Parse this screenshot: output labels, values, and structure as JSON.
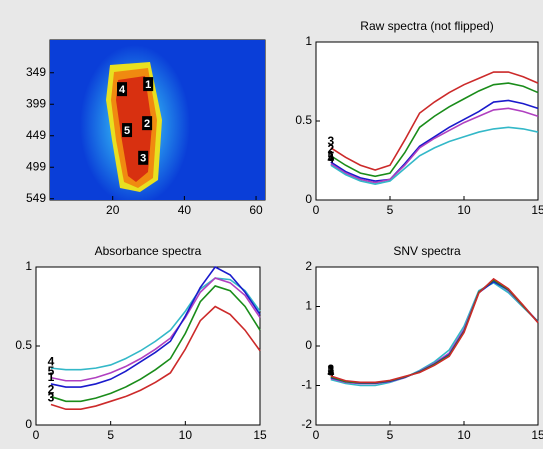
{
  "chart_data": [
    {
      "type": "image",
      "xlim": [
        2.5,
        62.5
      ],
      "xticks": [
        20,
        40,
        60
      ],
      "ylim": [
        297,
        551
      ],
      "yticks": [
        349,
        399,
        449,
        499,
        549
      ],
      "y_reversed": true,
      "markers": [
        {
          "label": "1",
          "x": 29.9,
          "y": 367
        },
        {
          "label": "2",
          "x": 29.6,
          "y": 429
        },
        {
          "label": "3",
          "x": 28.5,
          "y": 484
        },
        {
          "label": "4",
          "x": 22.6,
          "y": 375
        },
        {
          "label": "5",
          "x": 24,
          "y": 440
        }
      ]
    },
    {
      "type": "line",
      "title": "Raw spectra (not flipped)",
      "x": [
        1,
        2,
        3,
        4,
        5,
        6,
        7,
        8,
        9,
        10,
        11,
        12,
        13,
        14,
        15
      ],
      "xlim": [
        0,
        15
      ],
      "xticks": [
        0,
        5,
        10,
        15
      ],
      "ylim": [
        0,
        1
      ],
      "yticks": [
        0,
        0.5,
        1
      ],
      "series": [
        {
          "name": "3",
          "color": "#cc2a2a",
          "values": [
            0.33,
            0.27,
            0.22,
            0.19,
            0.22,
            0.38,
            0.55,
            0.62,
            0.68,
            0.73,
            0.77,
            0.81,
            0.81,
            0.78,
            0.74
          ]
        },
        {
          "name": "2",
          "color": "#1a8c1a",
          "values": [
            0.28,
            0.22,
            0.17,
            0.15,
            0.17,
            0.3,
            0.46,
            0.53,
            0.59,
            0.64,
            0.69,
            0.73,
            0.74,
            0.72,
            0.68
          ]
        },
        {
          "name": "1",
          "color": "#1a1acc",
          "values": [
            0.24,
            0.18,
            0.14,
            0.12,
            0.13,
            0.23,
            0.34,
            0.4,
            0.46,
            0.51,
            0.56,
            0.62,
            0.63,
            0.61,
            0.58
          ]
        },
        {
          "name": "5",
          "color": "#b040c0",
          "values": [
            0.23,
            0.17,
            0.13,
            0.11,
            0.13,
            0.22,
            0.33,
            0.39,
            0.44,
            0.49,
            0.53,
            0.57,
            0.58,
            0.56,
            0.53
          ]
        },
        {
          "name": "4",
          "color": "#33b8c8",
          "values": [
            0.22,
            0.16,
            0.12,
            0.1,
            0.12,
            0.2,
            0.28,
            0.33,
            0.37,
            0.4,
            0.43,
            0.45,
            0.46,
            0.45,
            0.43
          ]
        }
      ]
    },
    {
      "type": "line",
      "title": "Absorbance spectra",
      "x": [
        1,
        2,
        3,
        4,
        5,
        6,
        7,
        8,
        9,
        10,
        11,
        12,
        13,
        14,
        15
      ],
      "xlim": [
        0,
        15
      ],
      "xticks": [
        0,
        5,
        10,
        15
      ],
      "ylim": [
        0,
        1
      ],
      "yticks": [
        0,
        0.5,
        1
      ],
      "series": [
        {
          "name": "4",
          "color": "#33b8c8",
          "values": [
            0.36,
            0.35,
            0.35,
            0.36,
            0.38,
            0.42,
            0.47,
            0.53,
            0.6,
            0.72,
            0.86,
            0.93,
            0.92,
            0.85,
            0.72
          ]
        },
        {
          "name": "5",
          "color": "#b040c0",
          "values": [
            0.3,
            0.28,
            0.28,
            0.3,
            0.33,
            0.37,
            0.42,
            0.48,
            0.55,
            0.68,
            0.84,
            0.93,
            0.9,
            0.82,
            0.68
          ]
        },
        {
          "name": "1",
          "color": "#1a1acc",
          "values": [
            0.26,
            0.24,
            0.24,
            0.26,
            0.29,
            0.34,
            0.4,
            0.46,
            0.53,
            0.69,
            0.87,
            1.0,
            0.95,
            0.84,
            0.7
          ]
        },
        {
          "name": "2",
          "color": "#1a8c1a",
          "values": [
            0.18,
            0.15,
            0.15,
            0.17,
            0.2,
            0.24,
            0.29,
            0.35,
            0.42,
            0.58,
            0.78,
            0.88,
            0.85,
            0.75,
            0.6
          ]
        },
        {
          "name": "3",
          "color": "#cc2a2a",
          "values": [
            0.13,
            0.1,
            0.1,
            0.12,
            0.15,
            0.18,
            0.22,
            0.27,
            0.33,
            0.48,
            0.66,
            0.75,
            0.7,
            0.6,
            0.47
          ]
        }
      ]
    },
    {
      "type": "line",
      "title": "SNV spectra",
      "x": [
        1,
        2,
        3,
        4,
        5,
        6,
        7,
        8,
        9,
        10,
        11,
        12,
        13,
        14,
        15
      ],
      "xlim": [
        0,
        15
      ],
      "xticks": [
        0,
        5,
        10,
        15
      ],
      "ylim": [
        -2,
        2
      ],
      "yticks": [
        -2,
        -1,
        0,
        1,
        2
      ],
      "series": [
        {
          "name": "4",
          "color": "#33b8c8",
          "values": [
            -0.85,
            -0.95,
            -1.0,
            -1.0,
            -0.92,
            -0.8,
            -0.62,
            -0.4,
            -0.1,
            0.5,
            1.4,
            1.6,
            1.35,
            0.98,
            0.62
          ]
        },
        {
          "name": "5",
          "color": "#b040c0",
          "values": [
            -0.82,
            -0.92,
            -0.95,
            -0.95,
            -0.9,
            -0.8,
            -0.64,
            -0.44,
            -0.18,
            0.42,
            1.37,
            1.66,
            1.4,
            1.0,
            0.6
          ]
        },
        {
          "name": "1",
          "color": "#1a1acc",
          "values": [
            -0.8,
            -0.9,
            -0.94,
            -0.94,
            -0.89,
            -0.79,
            -0.65,
            -0.46,
            -0.22,
            0.38,
            1.35,
            1.63,
            1.42,
            1.02,
            0.61
          ]
        },
        {
          "name": "2",
          "color": "#1a8c1a",
          "values": [
            -0.78,
            -0.9,
            -0.93,
            -0.93,
            -0.88,
            -0.78,
            -0.66,
            -0.47,
            -0.24,
            0.36,
            1.36,
            1.67,
            1.43,
            1.01,
            0.6
          ]
        },
        {
          "name": "3",
          "color": "#cc2a2a",
          "values": [
            -0.76,
            -0.88,
            -0.92,
            -0.92,
            -0.87,
            -0.77,
            -0.67,
            -0.49,
            -0.26,
            0.34,
            1.34,
            1.7,
            1.45,
            1.03,
            0.59
          ]
        }
      ]
    }
  ]
}
